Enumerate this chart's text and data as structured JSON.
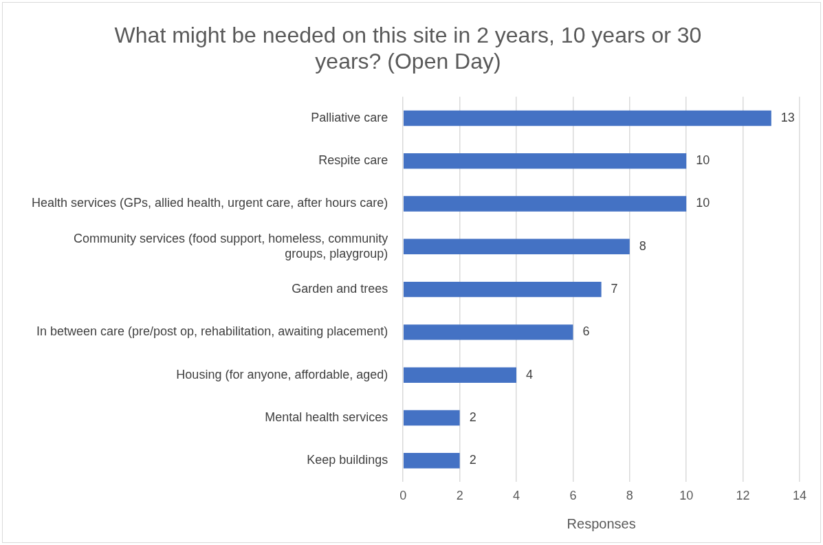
{
  "chart_data": {
    "type": "bar",
    "orientation": "horizontal",
    "title": "What might be needed on this site in 2 years, 10 years or 30 years? (Open Day)",
    "xlabel": "Responses",
    "categories": [
      "Palliative care",
      "Respite care",
      "Health services (GPs, allied health, urgent care, after hours care)",
      "Community services (food support, homeless, community groups, playgroup)",
      "Garden and trees",
      "In between care (pre/post op, rehabilitation, awaiting placement)",
      "Housing (for anyone, affordable, aged)",
      "Mental health services",
      "Keep buildings"
    ],
    "values": [
      13,
      10,
      10,
      8,
      7,
      6,
      4,
      2,
      2
    ],
    "color": "#4472c4",
    "xlim": [
      0,
      14
    ],
    "xticks": [
      0,
      2,
      4,
      6,
      8,
      10,
      12,
      14
    ],
    "grid": "x",
    "data_labels": true,
    "legend": false
  }
}
